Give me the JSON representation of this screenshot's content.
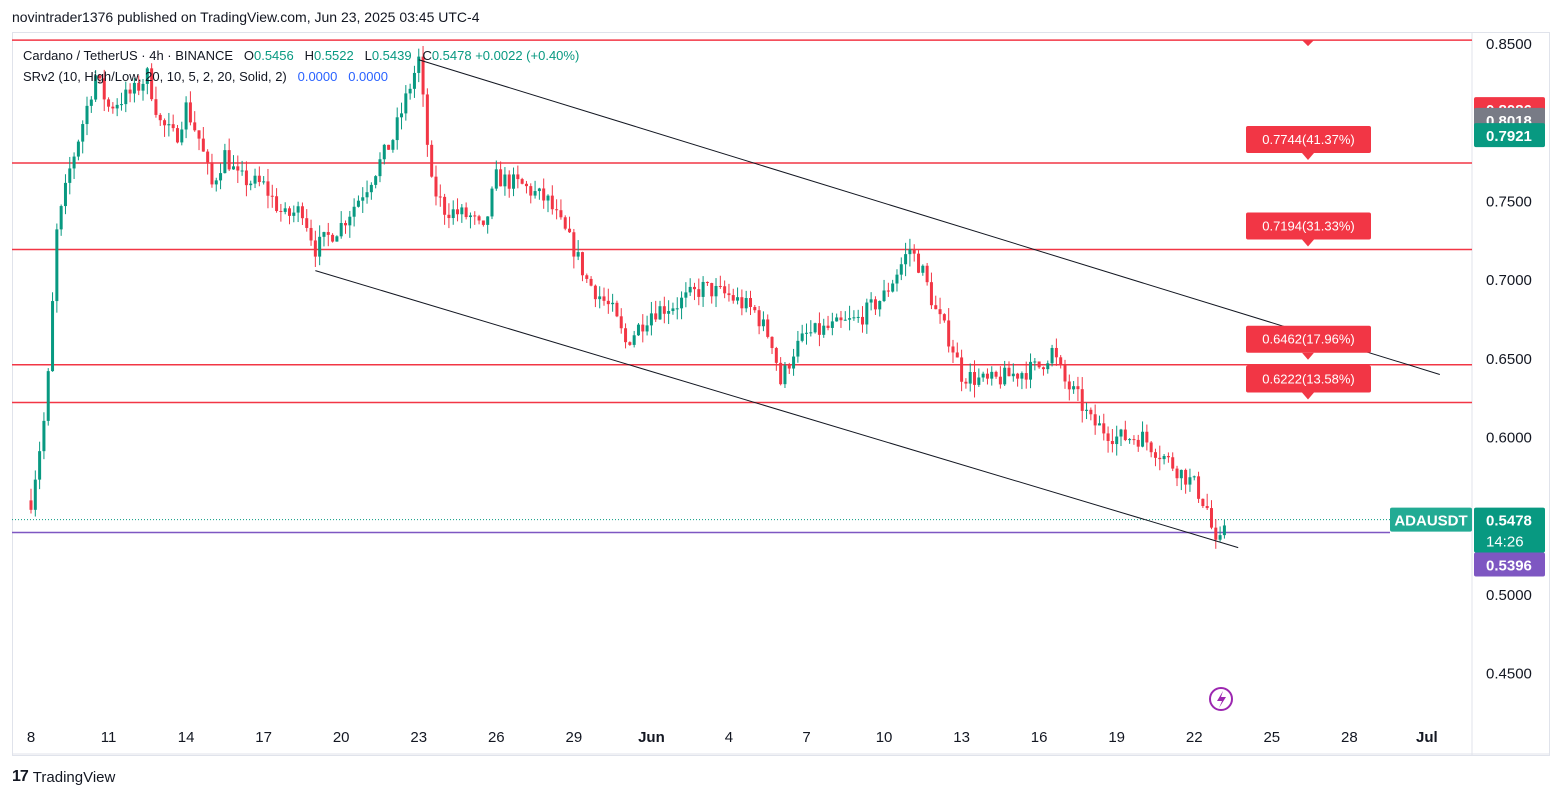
{
  "header": {
    "publish_line": "novintrader1376 published on TradingView.com, Jun 23, 2025 03:45 UTC-4"
  },
  "legend": {
    "symbol": "Cardano / TetherUS · 4h · BINANCE",
    "o_label": "O",
    "o_value": "0.5456",
    "h_label": "H",
    "h_value": "0.5522",
    "l_label": "L",
    "l_value": "0.5439",
    "c_label": "C",
    "c_value": "0.5478",
    "change": "+0.0022 (+0.40%)",
    "indicator": "SRv2 (10, High/Low, 20, 10, 5, 2, 20, Solid, 2)",
    "ind_v1": "0.0000",
    "ind_v2": "0.0000"
  },
  "footer": {
    "logo_glyph": "17",
    "brand": "TradingView"
  },
  "colors": {
    "up": "#089981",
    "down": "#f23645",
    "sr_line": "#f23645",
    "current_line": "#7e57c2",
    "channel": "#131722",
    "symbol_tag": "#22ab94"
  },
  "chart_data": {
    "type": "candlestick",
    "symbol": "ADAUSDT",
    "interval": "4h",
    "ylim": [
      0.42,
      0.855
    ],
    "x_ticks": [
      "8",
      "11",
      "14",
      "17",
      "20",
      "23",
      "26",
      "29",
      "Jun",
      "4",
      "7",
      "10",
      "13",
      "16",
      "19",
      "22",
      "25",
      "28",
      "Jul"
    ],
    "x_tick_days": [
      0,
      3,
      6,
      9,
      12,
      15,
      18,
      21,
      24,
      27,
      30,
      33,
      36,
      39,
      42,
      45,
      48,
      51,
      54
    ],
    "y_ticks": [
      "0.8500",
      "0.7500",
      "0.7000",
      "0.6500",
      "0.6000",
      "0.5000",
      "0.4500"
    ],
    "y_tick_values": [
      0.85,
      0.75,
      0.7,
      0.65,
      0.6,
      0.5,
      0.45
    ],
    "price_path": [
      [
        0,
        0.56
      ],
      [
        0.6,
        0.62
      ],
      [
        1.0,
        0.73
      ],
      [
        1.5,
        0.77
      ],
      [
        2.0,
        0.8
      ],
      [
        2.5,
        0.83
      ],
      [
        3.0,
        0.81
      ],
      [
        4.0,
        0.82
      ],
      [
        4.5,
        0.83
      ],
      [
        5.0,
        0.8
      ],
      [
        5.6,
        0.79
      ],
      [
        6.0,
        0.81
      ],
      [
        6.5,
        0.79
      ],
      [
        7.0,
        0.76
      ],
      [
        7.5,
        0.78
      ],
      [
        8.0,
        0.765
      ],
      [
        9.0,
        0.76
      ],
      [
        9.8,
        0.74
      ],
      [
        10.5,
        0.745
      ],
      [
        11.0,
        0.72
      ],
      [
        12.0,
        0.735
      ],
      [
        13.0,
        0.76
      ],
      [
        14.0,
        0.79
      ],
      [
        15.0,
        0.84
      ],
      [
        15.5,
        0.76
      ],
      [
        16.0,
        0.745
      ],
      [
        17.0,
        0.74
      ],
      [
        17.5,
        0.73
      ],
      [
        18.0,
        0.765
      ],
      [
        19.0,
        0.76
      ],
      [
        20.0,
        0.75
      ],
      [
        21.0,
        0.72
      ],
      [
        21.5,
        0.7
      ],
      [
        22.0,
        0.69
      ],
      [
        22.5,
        0.68
      ],
      [
        23.0,
        0.66
      ],
      [
        23.5,
        0.67
      ],
      [
        24.0,
        0.68
      ],
      [
        25.0,
        0.685
      ],
      [
        26.0,
        0.695
      ],
      [
        27.0,
        0.69
      ],
      [
        28.0,
        0.68
      ],
      [
        28.7,
        0.66
      ],
      [
        29.0,
        0.635
      ],
      [
        29.5,
        0.655
      ],
      [
        30.0,
        0.665
      ],
      [
        31.0,
        0.67
      ],
      [
        32.0,
        0.675
      ],
      [
        33.0,
        0.69
      ],
      [
        34.0,
        0.72
      ],
      [
        34.5,
        0.705
      ],
      [
        35.0,
        0.68
      ],
      [
        35.6,
        0.66
      ],
      [
        36.0,
        0.64
      ],
      [
        37.0,
        0.635
      ],
      [
        38.0,
        0.64
      ],
      [
        39.0,
        0.645
      ],
      [
        39.5,
        0.655
      ],
      [
        40.0,
        0.635
      ],
      [
        40.5,
        0.625
      ],
      [
        41.0,
        0.61
      ],
      [
        42.0,
        0.6
      ],
      [
        43.0,
        0.6
      ],
      [
        44.0,
        0.585
      ],
      [
        45.0,
        0.57
      ],
      [
        45.5,
        0.555
      ],
      [
        45.9,
        0.525
      ],
      [
        46.2,
        0.548
      ]
    ],
    "horizontal_levels": [
      {
        "value": 0.8525,
        "label": ""
      },
      {
        "value": 0.7744,
        "label": "0.7744(41.37%)"
      },
      {
        "value": 0.7194,
        "label": "0.7194(31.33%)"
      },
      {
        "value": 0.6462,
        "label": "0.6462(17.96%)"
      },
      {
        "value": 0.6222,
        "label": "0.6222(13.58%)"
      }
    ],
    "current_level": {
      "value": 0.5396,
      "label": "0.5396"
    },
    "last_price": {
      "value": 0.5478,
      "label": "0.5478",
      "symbol": "ADAUSDT",
      "countdown": "14:26"
    },
    "price_tags": [
      {
        "value": 0.8086,
        "label": "0.8086",
        "color": "#f23645"
      },
      {
        "value": 0.8018,
        "label": "0.8018",
        "color": "#787b86"
      },
      {
        "value": 0.7921,
        "label": "0.7921",
        "color": "#089981"
      }
    ],
    "channel_lines": [
      {
        "from": [
          15.0,
          0.84
        ],
        "to": [
          54.5,
          0.64
        ]
      },
      {
        "from": [
          11.0,
          0.706
        ],
        "to": [
          46.7,
          0.53
        ]
      }
    ]
  }
}
